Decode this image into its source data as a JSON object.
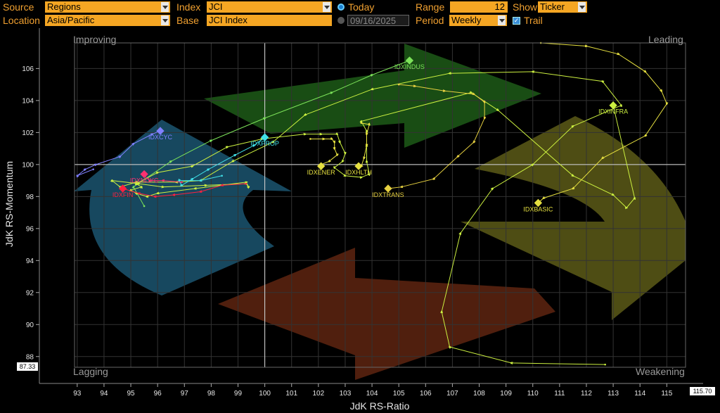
{
  "controls": {
    "source_label": "Source",
    "source_value": "Regions",
    "location_label": "Location",
    "location_value": "Asia/Pacific",
    "index_label": "Index",
    "index_value": "JCI",
    "base_label": "Base",
    "base_value": "JCI Index",
    "today_label": "Today",
    "date_value": "09/16/2025",
    "range_label": "Range",
    "range_value": "12",
    "period_label": "Period",
    "period_value": "Weekly",
    "show_label": "Show",
    "show_value": "Ticker",
    "trail_label": "Trail"
  },
  "quadrants": {
    "improving": "Improving",
    "leading": "Leading",
    "lagging": "Lagging",
    "weakening": "Weakening"
  },
  "chart_data": {
    "type": "scatter",
    "xlabel": "JdK RS-Ratio",
    "ylabel": "JdK RS-Momentum",
    "xlim": [
      92.9,
      115.7
    ],
    "ylim": [
      87.33,
      107.6
    ],
    "x_ticks": [
      93,
      94,
      95,
      96,
      97,
      98,
      99,
      100,
      101,
      102,
      103,
      104,
      105,
      106,
      107,
      108,
      109,
      110,
      111,
      112,
      113,
      114,
      115
    ],
    "y_ticks": [
      88,
      90,
      92,
      94,
      96,
      98,
      100,
      102,
      104,
      106
    ],
    "x_min_label": "",
    "x_max_label": "115.70",
    "y_min_label": "87.33",
    "center": [
      100,
      100
    ],
    "series": [
      {
        "name": "IDXINDUS",
        "color": "#7de35a",
        "points": [
          [
            95.5,
            97.4
          ],
          [
            95.1,
            98.6
          ],
          [
            96.5,
            100.2
          ],
          [
            98.0,
            101.5
          ],
          [
            100.0,
            102.9
          ],
          [
            102.5,
            104.5
          ],
          [
            104.0,
            105.6
          ],
          [
            105.4,
            106.5
          ]
        ]
      },
      {
        "name": "IDXINFRA",
        "color": "#ccf040",
        "points": [
          [
            112.7,
            87.5
          ],
          [
            109.2,
            87.6
          ],
          [
            106.9,
            88.6
          ],
          [
            106.6,
            90.8
          ],
          [
            107.3,
            95.7
          ],
          [
            108.5,
            98.5
          ],
          [
            110.0,
            100.0
          ],
          [
            111.5,
            102.4
          ],
          [
            113.3,
            103.7
          ],
          [
            112.6,
            105.2
          ],
          [
            110.0,
            105.8
          ],
          [
            106.9,
            105.7
          ],
          [
            104.0,
            104.7
          ],
          [
            101.5,
            103.1
          ],
          [
            100.3,
            101.4
          ],
          [
            98.8,
            100.2
          ],
          [
            97.6,
            99.0
          ],
          [
            96.7,
            98.9
          ],
          [
            95.2,
            98.9
          ],
          [
            94.6,
            98.6
          ],
          [
            94.3,
            99.0
          ],
          [
            95.3,
            98.8
          ],
          [
            96.2,
            98.6
          ],
          [
            97.8,
            98.7
          ],
          [
            99.3,
            98.8
          ],
          [
            99.4,
            98.6
          ],
          [
            99.3,
            98.9
          ],
          [
            97.4,
            98.5
          ],
          [
            96.0,
            98.2
          ],
          [
            95.6,
            98.0
          ],
          [
            95.2,
            98.2
          ],
          [
            95.0,
            98.4
          ],
          [
            95.4,
            98.6
          ],
          [
            95.2,
            98.8
          ],
          [
            96.0,
            99.5
          ],
          [
            97.3,
            99.9
          ],
          [
            98.6,
            101.1
          ],
          [
            99.9,
            101.6
          ],
          [
            101.5,
            101.9
          ],
          [
            102.1,
            101.9
          ],
          [
            102.7,
            101.9
          ],
          [
            102.8,
            101.4
          ],
          [
            103.0,
            100.7
          ],
          [
            102.9,
            100.2
          ],
          [
            102.6,
            99.8
          ],
          [
            103.0,
            99.3
          ],
          [
            103.6,
            99.2
          ],
          [
            103.9,
            99.4
          ],
          [
            103.8,
            100.2
          ],
          [
            103.8,
            101.2
          ],
          [
            103.8,
            102.1
          ],
          [
            103.6,
            102.7
          ],
          [
            107.7,
            104.5
          ],
          [
            108.7,
            103.4
          ],
          [
            111.5,
            99.3
          ],
          [
            113.0,
            98.1
          ],
          [
            113.5,
            97.3
          ],
          [
            113.8,
            97.9
          ],
          [
            113.0,
            103.7
          ]
        ]
      },
      {
        "name": "IDXBASIC",
        "color": "#e6e040",
        "points": [
          [
            110.3,
            107.6
          ],
          [
            112.0,
            107.4
          ],
          [
            113.2,
            106.9
          ],
          [
            114.2,
            105.8
          ],
          [
            114.8,
            104.6
          ],
          [
            115.0,
            103.8
          ],
          [
            114.2,
            101.8
          ],
          [
            112.6,
            100.4
          ],
          [
            111.5,
            98.5
          ],
          [
            110.4,
            97.9
          ],
          [
            110.2,
            97.6
          ]
        ]
      },
      {
        "name": "IDXTRANS",
        "color": "#e6d040",
        "points": [
          [
            105.0,
            105.0
          ],
          [
            105.6,
            104.9
          ],
          [
            106.7,
            104.6
          ],
          [
            107.8,
            104.4
          ],
          [
            108.2,
            103.9
          ],
          [
            108.2,
            102.9
          ],
          [
            107.8,
            101.4
          ],
          [
            107.2,
            100.5
          ],
          [
            106.3,
            99.1
          ],
          [
            105.1,
            98.6
          ],
          [
            104.6,
            98.5
          ]
        ]
      },
      {
        "name": "IDXENER",
        "color": "#e6e040",
        "points": [
          [
            101.7,
            101.6
          ],
          [
            102.2,
            101.6
          ],
          [
            102.5,
            101.6
          ],
          [
            102.6,
            101.4
          ],
          [
            102.6,
            101.0
          ],
          [
            102.7,
            100.6
          ],
          [
            102.4,
            100.2
          ],
          [
            102.1,
            100.0
          ],
          [
            102.1,
            99.9
          ]
        ]
      },
      {
        "name": "IDXHLTH",
        "color": "#e6e040",
        "points": [
          [
            103.6,
            102.6
          ],
          [
            103.9,
            102.5
          ],
          [
            103.8,
            101.9
          ],
          [
            103.8,
            101.2
          ],
          [
            103.7,
            100.4
          ],
          [
            103.6,
            99.9
          ],
          [
            103.5,
            99.9
          ]
        ]
      },
      {
        "name": "IDXPROP",
        "color": "#40e0e8",
        "points": [
          [
            98.4,
            99.3
          ],
          [
            97.6,
            99.0
          ],
          [
            96.8,
            99.0
          ],
          [
            96.9,
            98.7
          ],
          [
            97.3,
            99.1
          ],
          [
            97.9,
            99.7
          ],
          [
            98.9,
            100.6
          ],
          [
            99.6,
            101.2
          ],
          [
            100.0,
            101.7
          ]
        ]
      },
      {
        "name": "IDXCYC",
        "color": "#8080ff",
        "points": [
          [
            93.6,
            99.7
          ],
          [
            93.0,
            99.3
          ],
          [
            93.3,
            99.7
          ],
          [
            93.7,
            100.0
          ],
          [
            94.6,
            100.5
          ],
          [
            95.1,
            101.3
          ],
          [
            95.8,
            101.9
          ],
          [
            96.1,
            102.1
          ]
        ]
      },
      {
        "name": "IDXNCYC",
        "color": "#ff3070",
        "points": [
          [
            96.9,
            98.9
          ],
          [
            96.2,
            99.0
          ],
          [
            95.7,
            99.0
          ],
          [
            95.5,
            99.3
          ],
          [
            95.5,
            99.4
          ]
        ]
      },
      {
        "name": "IDXFIN",
        "color": "#ff2040",
        "points": [
          [
            99.3,
            98.8
          ],
          [
            98.4,
            98.7
          ],
          [
            97.6,
            98.3
          ],
          [
            96.6,
            98.1
          ],
          [
            95.9,
            98.0
          ],
          [
            95.3,
            98.2
          ],
          [
            94.7,
            98.5
          ]
        ]
      }
    ],
    "labels": [
      "IDXINDUS",
      "IDXINFRA",
      "IDXBASIC",
      "IDXTRANS",
      "IDXENER",
      "IDXHLTH",
      "IDXPROP",
      "IDXCYC",
      "IDXNCYC",
      "IDXFIN"
    ],
    "grid": true
  }
}
